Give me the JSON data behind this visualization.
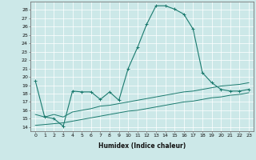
{
  "title": "",
  "xlabel": "Humidex (Indice chaleur)",
  "ylabel": "",
  "background_color": "#cce8e8",
  "line_color": "#1a7a6e",
  "xlim": [
    -0.5,
    23.5
  ],
  "ylim": [
    13.5,
    29.0
  ],
  "yticks": [
    14,
    15,
    16,
    17,
    18,
    19,
    20,
    21,
    22,
    23,
    24,
    25,
    26,
    27,
    28
  ],
  "xticks": [
    0,
    1,
    2,
    3,
    4,
    5,
    6,
    7,
    8,
    9,
    10,
    11,
    12,
    13,
    14,
    15,
    16,
    17,
    18,
    19,
    20,
    21,
    22,
    23
  ],
  "main_line": {
    "x": [
      0,
      1,
      2,
      3,
      4,
      5,
      6,
      7,
      8,
      9,
      10,
      11,
      12,
      13,
      14,
      15,
      16,
      17,
      18,
      19,
      20,
      21,
      22,
      23
    ],
    "y": [
      19.5,
      15.2,
      15.0,
      14.1,
      18.3,
      18.2,
      18.2,
      17.3,
      18.2,
      17.2,
      21.0,
      23.5,
      26.3,
      28.5,
      28.5,
      28.1,
      27.5,
      25.7,
      20.5,
      19.3,
      18.5,
      18.3,
      18.3,
      18.5
    ]
  },
  "line2": {
    "x": [
      0,
      1,
      2,
      3,
      4,
      5,
      6,
      7,
      8,
      9,
      10,
      11,
      12,
      13,
      14,
      15,
      16,
      17,
      18,
      19,
      20,
      21,
      22,
      23
    ],
    "y": [
      15.5,
      15.2,
      15.5,
      15.2,
      15.8,
      16.0,
      16.2,
      16.5,
      16.6,
      16.8,
      17.0,
      17.2,
      17.4,
      17.6,
      17.8,
      18.0,
      18.2,
      18.3,
      18.5,
      18.7,
      18.9,
      19.0,
      19.1,
      19.3
    ]
  },
  "line3": {
    "x": [
      0,
      1,
      2,
      3,
      4,
      5,
      6,
      7,
      8,
      9,
      10,
      11,
      12,
      13,
      14,
      15,
      16,
      17,
      18,
      19,
      20,
      21,
      22,
      23
    ],
    "y": [
      14.2,
      14.3,
      14.4,
      14.5,
      14.7,
      14.9,
      15.1,
      15.3,
      15.5,
      15.7,
      15.9,
      16.0,
      16.2,
      16.4,
      16.6,
      16.8,
      17.0,
      17.1,
      17.3,
      17.5,
      17.6,
      17.8,
      17.9,
      18.1
    ]
  },
  "xlabel_fontsize": 5.5,
  "tick_fontsize": 4.5
}
